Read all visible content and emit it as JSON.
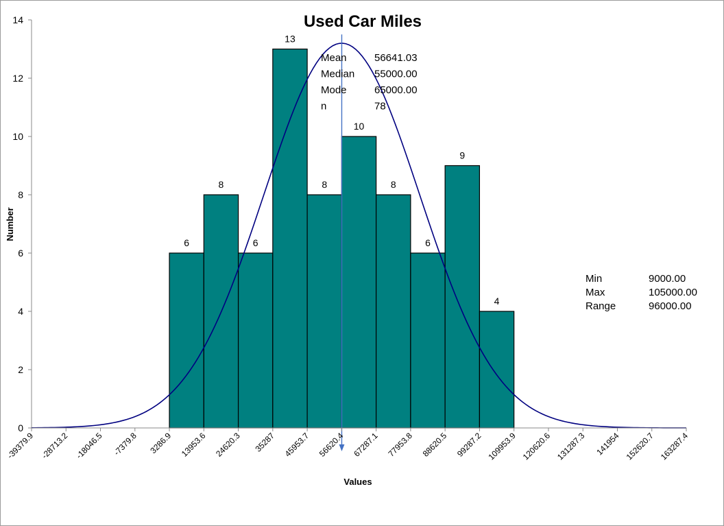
{
  "chart_data": {
    "type": "bar",
    "title": "Used Car Miles",
    "xlabel": "Values",
    "ylabel": "Number",
    "ylim": [
      0,
      14
    ],
    "yticks": [
      0,
      2,
      4,
      6,
      8,
      10,
      12,
      14
    ],
    "grid": false,
    "bin_edges": [
      3286.9,
      13953.6,
      24620.3,
      35287,
      45953.7,
      56620.4,
      67287.1,
      77953.8,
      88620.5,
      99287.2,
      109953.9
    ],
    "values": [
      6,
      8,
      6,
      13,
      8,
      10,
      8,
      6,
      9,
      4
    ],
    "value_labels": [
      "6",
      "8",
      "6",
      "13",
      "8",
      "10",
      "8",
      "6",
      "9",
      "4"
    ],
    "x_tick_labels": [
      "-39379.9",
      "-28713.2",
      "-18046.5",
      "-7379.8",
      "3286.9",
      "13953.6",
      "24620.3",
      "35287",
      "45953.7",
      "56620.4",
      "67287.1",
      "77953.8",
      "88620.5",
      "99287.2",
      "109953.9",
      "120620.6",
      "131287.3",
      "141954",
      "152620.7",
      "163287.4"
    ],
    "normal_curve": {
      "mean": 56641.03,
      "peak_value": 13.2,
      "sd": 24100
    },
    "mean_marker": 56641.03,
    "stats_main": [
      {
        "label": "Mean",
        "value": "56641.03"
      },
      {
        "label": "Median",
        "value": "55000.00"
      },
      {
        "label": "Mode",
        "value": "65000.00"
      },
      {
        "label": "n",
        "value": "78"
      }
    ],
    "stats_range": [
      {
        "label": "Min",
        "value": "9000.00"
      },
      {
        "label": "Max",
        "value": "105000.00"
      },
      {
        "label": "Range",
        "value": "96000.00"
      }
    ],
    "colors": {
      "bar": "#008080",
      "bar_border": "#000000",
      "curve": "#000080",
      "mean_line": "#4472C4"
    }
  }
}
